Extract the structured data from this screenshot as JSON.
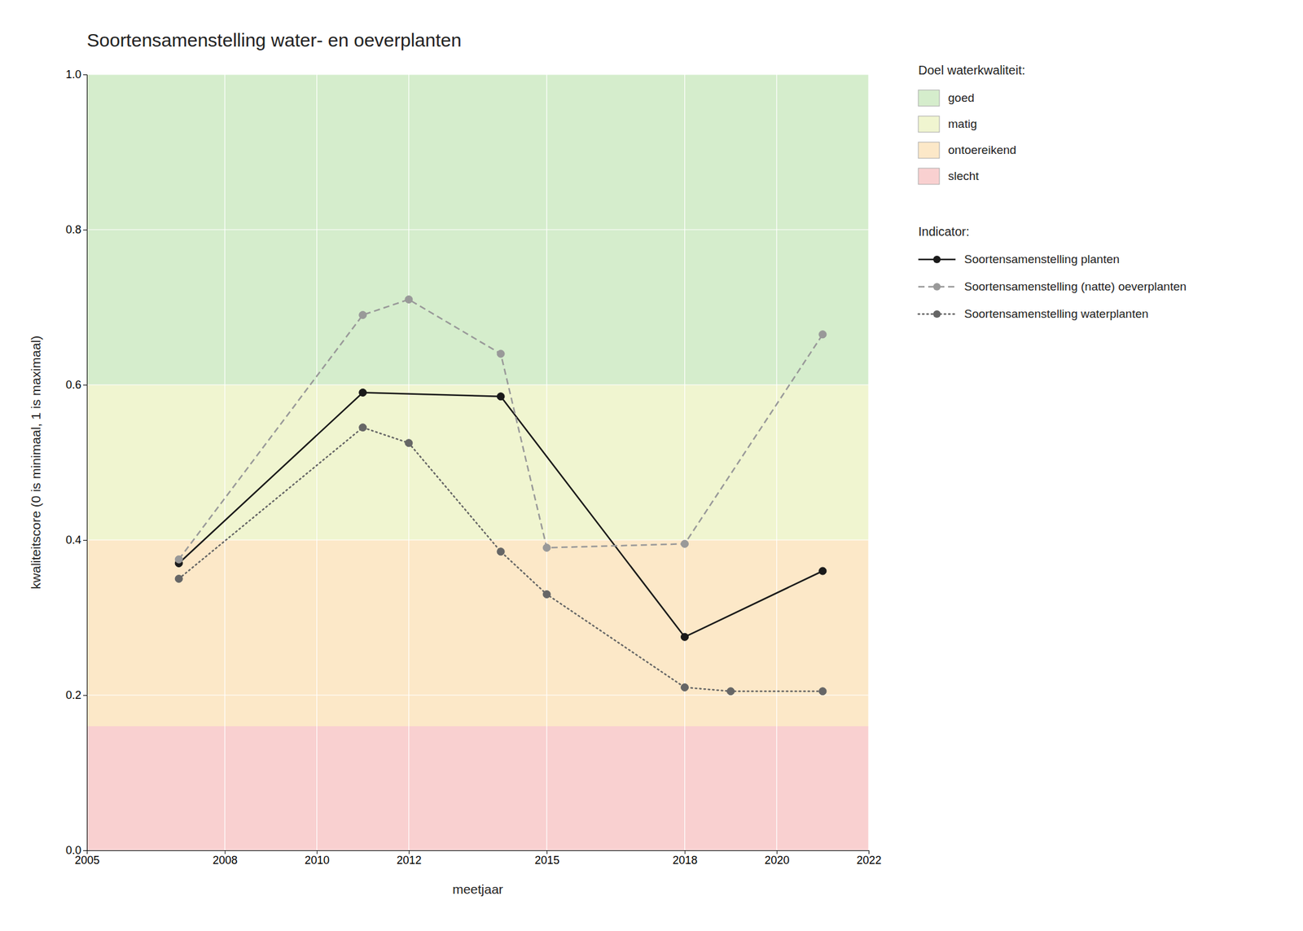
{
  "chart_data": {
    "type": "line",
    "title": "Soortensamenstelling water- en oeverplanten",
    "x_label": "meetjaar",
    "y_label": "kwaliteitscore (0 is minimaal, 1 is maximaal)",
    "xlim": [
      2005,
      2022
    ],
    "ylim": [
      0.0,
      1.0
    ],
    "xticks": [
      2005,
      2008,
      2010,
      2012,
      2015,
      2018,
      2020,
      2022
    ],
    "yticks": [
      {
        "value": 0.0,
        "label": "0.0"
      },
      0.2,
      0.4,
      0.6,
      0.8,
      {
        "value": 1.0,
        "label": "1.0"
      }
    ],
    "grid": true,
    "legend": "right",
    "bands_title": "Doel waterkwaliteit:",
    "bands": [
      {
        "name": "goed",
        "ymin": 0.6,
        "ymax": 1.0,
        "color": "#d5edcc"
      },
      {
        "name": "matig",
        "ymin": 0.4,
        "ymax": 0.6,
        "color": "#f0f5d0"
      },
      {
        "name": "ontoereikend",
        "ymin": 0.16,
        "ymax": 0.4,
        "color": "#fce8c8"
      },
      {
        "name": "slecht",
        "ymin": 0.0,
        "ymax": 0.16,
        "color": "#f9d0d0"
      }
    ],
    "legend_title": "Indicator:",
    "series": [
      {
        "name": "Soortensamenstelling planten",
        "color": "#1a1a1a",
        "line_style": "solid",
        "marker": "circle",
        "x": [
          2007,
          2011,
          2014,
          2018,
          2021
        ],
        "values": [
          0.37,
          0.59,
          0.585,
          0.275,
          0.36
        ]
      },
      {
        "name": "Soortensamenstelling (natte) oeverplanten",
        "color": "#999999",
        "line_style": "dashed",
        "marker": "circle",
        "x": [
          2007,
          2011,
          2012,
          2014,
          2015,
          2018,
          2021
        ],
        "values": [
          0.375,
          0.69,
          0.71,
          0.64,
          0.39,
          0.395,
          0.665
        ]
      },
      {
        "name": "Soortensamenstelling waterplanten",
        "color": "#666666",
        "line_style": "dotted",
        "marker": "circle",
        "x": [
          2007,
          2011,
          2012,
          2014,
          2015,
          2018,
          2019,
          2021
        ],
        "values": [
          0.35,
          0.545,
          0.525,
          0.385,
          0.33,
          0.21,
          0.205,
          0.205
        ]
      }
    ]
  }
}
